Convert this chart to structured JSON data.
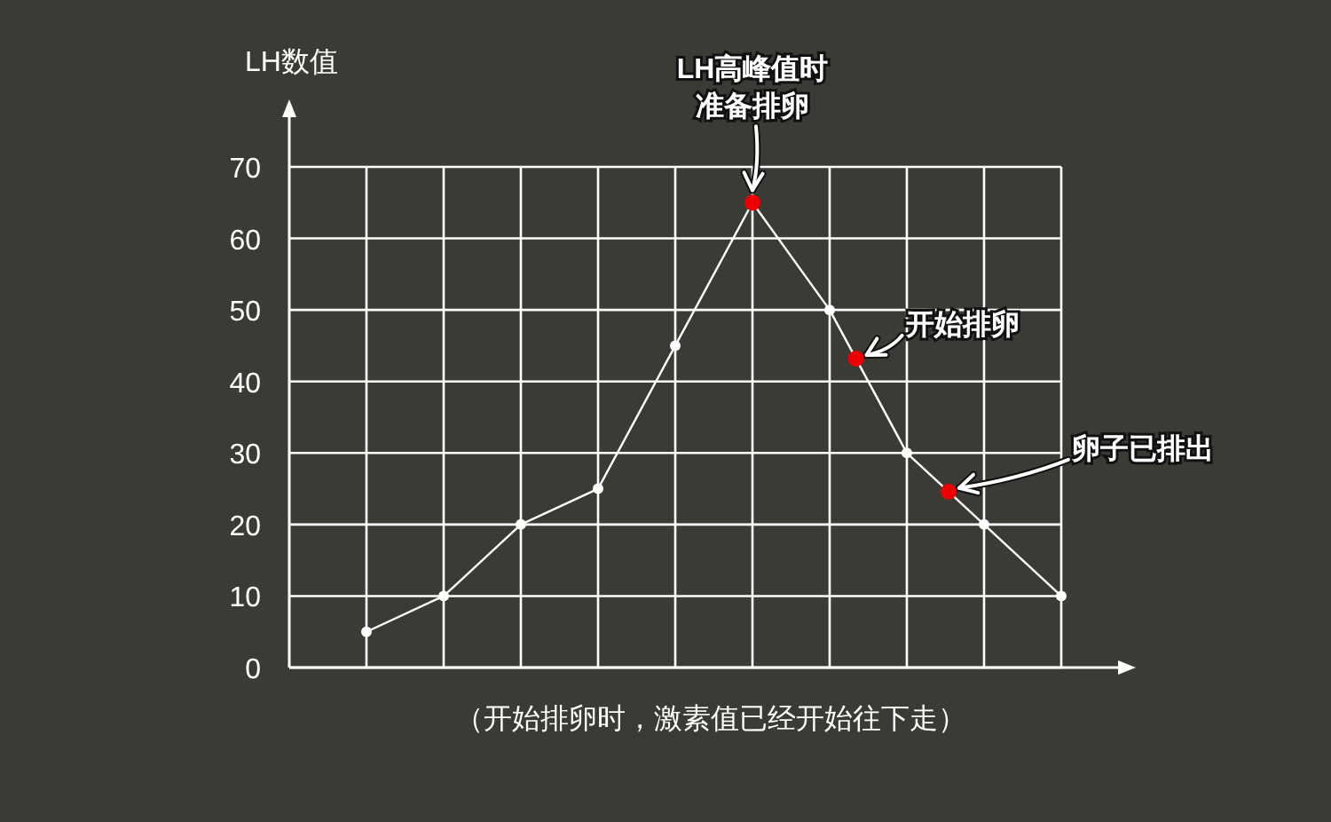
{
  "chart_data": {
    "type": "line",
    "ylabel": "LH数值",
    "categories": [
      null,
      null,
      null,
      null,
      null,
      null,
      null,
      null,
      null,
      null
    ],
    "ylim": [
      0,
      70
    ],
    "yticks": [
      0,
      10,
      20,
      30,
      40,
      50,
      60,
      70
    ],
    "tick_labels": "y",
    "grid": true,
    "marker": "circle",
    "series": [
      {
        "color": "#ffffff",
        "colors": [
          "#ffffff",
          "#ffffff",
          "#ffffff",
          "#ffffff",
          "#ffffff",
          "#ee0000",
          "#ffffff",
          "#ffffff",
          "#ffffff",
          "#ffffff"
        ],
        "values": [
          5,
          10,
          20,
          25,
          45,
          65,
          50,
          30,
          20,
          10
        ]
      }
    ],
    "annotations": [
      "LH高峰值时",
      "准备排卵",
      "开始排卵",
      "卵子已排出",
      "（开始排卵时，激素值已经开始往下走）"
    ]
  }
}
